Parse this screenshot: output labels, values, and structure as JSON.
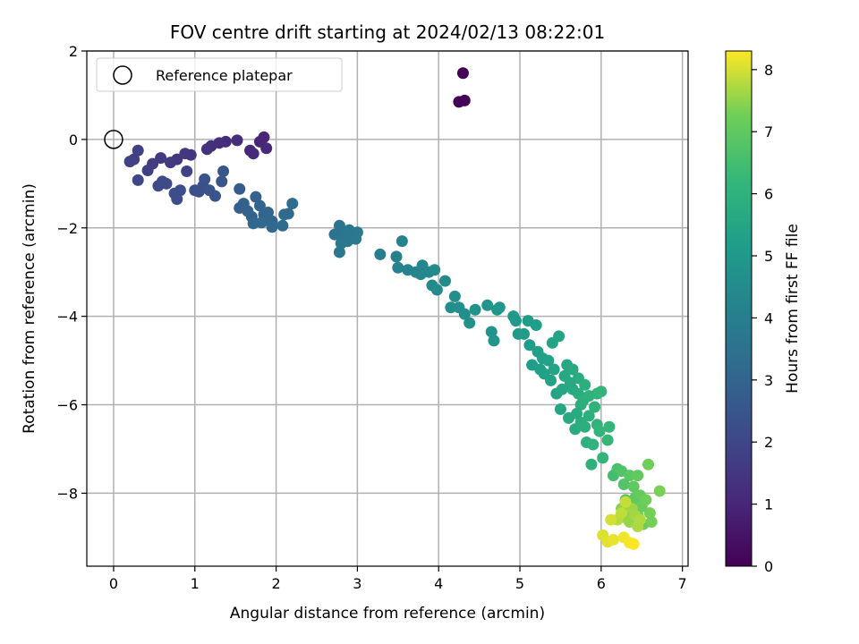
{
  "chart_data": {
    "type": "scatter",
    "title": "FOV centre drift starting at 2024/02/13 08:22:01",
    "xlabel": "Angular distance from reference (arcmin)",
    "ylabel": "Rotation from reference (arcmin)",
    "xlim": [
      -0.33,
      7.07
    ],
    "ylim": [
      -9.65,
      2.0
    ],
    "xticks": [
      0,
      1,
      2,
      3,
      4,
      5,
      6,
      7
    ],
    "yticks": [
      2,
      0,
      -2,
      -4,
      -6,
      -8
    ],
    "grid": true,
    "legend": {
      "position": "top-left",
      "entries": [
        "Reference platepar"
      ]
    },
    "reference_point": {
      "x": 0,
      "y": 0,
      "marker": "hollow-circle"
    },
    "colorbar": {
      "label": "Hours from first FF file",
      "range": [
        0,
        8.3
      ],
      "ticks": [
        0,
        1,
        2,
        3,
        4,
        5,
        6,
        7,
        8
      ],
      "colormap": "viridis"
    },
    "points": [
      {
        "x": 4.3,
        "y": 1.5,
        "c": 0.05
      },
      {
        "x": 4.25,
        "y": 0.85,
        "c": 0.1
      },
      {
        "x": 4.32,
        "y": 0.88,
        "c": 0.1
      },
      {
        "x": 1.85,
        "y": 0.05,
        "c": 1.0
      },
      {
        "x": 1.8,
        "y": -0.05,
        "c": 1.0
      },
      {
        "x": 1.88,
        "y": -0.2,
        "c": 1.05
      },
      {
        "x": 1.68,
        "y": -0.25,
        "c": 1.05
      },
      {
        "x": 1.72,
        "y": -0.32,
        "c": 1.1
      },
      {
        "x": 1.52,
        "y": -0.02,
        "c": 1.15
      },
      {
        "x": 1.38,
        "y": -0.05,
        "c": 1.2
      },
      {
        "x": 1.3,
        "y": -0.08,
        "c": 1.25
      },
      {
        "x": 1.2,
        "y": -0.15,
        "c": 1.3
      },
      {
        "x": 1.15,
        "y": -0.22,
        "c": 1.35
      },
      {
        "x": 0.95,
        "y": -0.35,
        "c": 1.45
      },
      {
        "x": 0.88,
        "y": -0.32,
        "c": 1.5
      },
      {
        "x": 0.78,
        "y": -0.45,
        "c": 1.55
      },
      {
        "x": 0.7,
        "y": -0.52,
        "c": 1.6
      },
      {
        "x": 0.58,
        "y": -0.42,
        "c": 1.65
      },
      {
        "x": 0.48,
        "y": -0.55,
        "c": 1.7
      },
      {
        "x": 0.42,
        "y": -0.7,
        "c": 1.75
      },
      {
        "x": 0.3,
        "y": -0.25,
        "c": 1.8
      },
      {
        "x": 0.25,
        "y": -0.45,
        "c": 1.8
      },
      {
        "x": 0.2,
        "y": -0.5,
        "c": 1.85
      },
      {
        "x": 0.9,
        "y": -0.72,
        "c": 1.9
      },
      {
        "x": 0.3,
        "y": -0.92,
        "c": 2.0
      },
      {
        "x": 0.55,
        "y": -1.05,
        "c": 2.1
      },
      {
        "x": 0.6,
        "y": -0.95,
        "c": 2.1
      },
      {
        "x": 0.65,
        "y": -1.0,
        "c": 2.15
      },
      {
        "x": 0.75,
        "y": -1.22,
        "c": 2.2
      },
      {
        "x": 0.78,
        "y": -1.35,
        "c": 2.2
      },
      {
        "x": 0.82,
        "y": -1.15,
        "c": 2.25
      },
      {
        "x": 1.0,
        "y": -1.15,
        "c": 2.3
      },
      {
        "x": 1.05,
        "y": -1.18,
        "c": 2.3
      },
      {
        "x": 1.1,
        "y": -1.05,
        "c": 2.35
      },
      {
        "x": 1.12,
        "y": -0.9,
        "c": 2.4
      },
      {
        "x": 1.18,
        "y": -1.15,
        "c": 2.4
      },
      {
        "x": 1.25,
        "y": -1.28,
        "c": 2.45
      },
      {
        "x": 1.35,
        "y": -0.72,
        "c": 2.5
      },
      {
        "x": 1.33,
        "y": -0.95,
        "c": 2.5
      },
      {
        "x": 1.55,
        "y": -1.12,
        "c": 2.7
      },
      {
        "x": 1.55,
        "y": -1.55,
        "c": 2.8
      },
      {
        "x": 1.6,
        "y": -1.45,
        "c": 2.85
      },
      {
        "x": 1.65,
        "y": -1.62,
        "c": 2.9
      },
      {
        "x": 1.75,
        "y": -1.3,
        "c": 2.9
      },
      {
        "x": 1.7,
        "y": -1.75,
        "c": 2.95
      },
      {
        "x": 1.8,
        "y": -1.5,
        "c": 3.0
      },
      {
        "x": 1.85,
        "y": -1.7,
        "c": 3.0
      },
      {
        "x": 1.9,
        "y": -1.65,
        "c": 3.05
      },
      {
        "x": 1.95,
        "y": -1.85,
        "c": 3.05
      },
      {
        "x": 1.72,
        "y": -1.9,
        "c": 3.1
      },
      {
        "x": 1.82,
        "y": -1.88,
        "c": 3.1
      },
      {
        "x": 1.95,
        "y": -1.98,
        "c": 3.15
      },
      {
        "x": 2.08,
        "y": -1.95,
        "c": 3.2
      },
      {
        "x": 2.1,
        "y": -1.7,
        "c": 3.25
      },
      {
        "x": 2.15,
        "y": -1.68,
        "c": 3.25
      },
      {
        "x": 2.2,
        "y": -1.45,
        "c": 3.3
      },
      {
        "x": 2.72,
        "y": -2.15,
        "c": 3.6
      },
      {
        "x": 2.78,
        "y": -1.95,
        "c": 3.6
      },
      {
        "x": 2.82,
        "y": -2.2,
        "c": 3.65
      },
      {
        "x": 2.85,
        "y": -2.1,
        "c": 3.65
      },
      {
        "x": 2.88,
        "y": -2.3,
        "c": 3.7
      },
      {
        "x": 2.8,
        "y": -2.35,
        "c": 3.7
      },
      {
        "x": 2.78,
        "y": -2.55,
        "c": 3.7
      },
      {
        "x": 2.9,
        "y": -2.05,
        "c": 3.75
      },
      {
        "x": 2.95,
        "y": -2.15,
        "c": 3.75
      },
      {
        "x": 2.98,
        "y": -2.25,
        "c": 3.8
      },
      {
        "x": 3.0,
        "y": -2.1,
        "c": 3.8
      },
      {
        "x": 3.28,
        "y": -2.6,
        "c": 4.0
      },
      {
        "x": 3.48,
        "y": -2.65,
        "c": 4.05
      },
      {
        "x": 3.5,
        "y": -2.9,
        "c": 4.1
      },
      {
        "x": 3.55,
        "y": -2.3,
        "c": 4.15
      },
      {
        "x": 3.62,
        "y": -2.95,
        "c": 4.2
      },
      {
        "x": 3.72,
        "y": -3.0,
        "c": 4.25
      },
      {
        "x": 3.8,
        "y": -2.85,
        "c": 4.3
      },
      {
        "x": 3.78,
        "y": -3.05,
        "c": 4.3
      },
      {
        "x": 3.88,
        "y": -3.0,
        "c": 4.35
      },
      {
        "x": 3.92,
        "y": -3.3,
        "c": 4.4
      },
      {
        "x": 3.95,
        "y": -2.95,
        "c": 4.4
      },
      {
        "x": 3.98,
        "y": -3.4,
        "c": 4.45
      },
      {
        "x": 4.08,
        "y": -3.2,
        "c": 4.5
      },
      {
        "x": 4.15,
        "y": -3.8,
        "c": 4.55
      },
      {
        "x": 4.2,
        "y": -3.55,
        "c": 4.6
      },
      {
        "x": 4.25,
        "y": -3.8,
        "c": 4.6
      },
      {
        "x": 4.32,
        "y": -3.95,
        "c": 4.65
      },
      {
        "x": 4.38,
        "y": -4.15,
        "c": 4.7
      },
      {
        "x": 4.45,
        "y": -3.85,
        "c": 4.75
      },
      {
        "x": 4.6,
        "y": -3.75,
        "c": 4.8
      },
      {
        "x": 4.65,
        "y": -4.35,
        "c": 4.85
      },
      {
        "x": 4.68,
        "y": -4.55,
        "c": 4.85
      },
      {
        "x": 4.72,
        "y": -3.85,
        "c": 4.9
      },
      {
        "x": 4.75,
        "y": -3.8,
        "c": 4.9
      },
      {
        "x": 4.92,
        "y": -4.0,
        "c": 5.0
      },
      {
        "x": 4.95,
        "y": -4.1,
        "c": 5.0
      },
      {
        "x": 4.98,
        "y": -4.4,
        "c": 5.05
      },
      {
        "x": 5.05,
        "y": -4.4,
        "c": 5.1
      },
      {
        "x": 5.1,
        "y": -4.1,
        "c": 5.1
      },
      {
        "x": 5.12,
        "y": -4.65,
        "c": 5.15
      },
      {
        "x": 5.15,
        "y": -5.1,
        "c": 5.2
      },
      {
        "x": 5.2,
        "y": -4.2,
        "c": 5.2
      },
      {
        "x": 5.22,
        "y": -4.8,
        "c": 5.25
      },
      {
        "x": 5.25,
        "y": -5.2,
        "c": 5.25
      },
      {
        "x": 5.28,
        "y": -4.95,
        "c": 5.3
      },
      {
        "x": 5.3,
        "y": -5.3,
        "c": 5.3
      },
      {
        "x": 5.35,
        "y": -5.0,
        "c": 5.35
      },
      {
        "x": 5.38,
        "y": -5.45,
        "c": 5.35
      },
      {
        "x": 5.4,
        "y": -4.6,
        "c": 5.4
      },
      {
        "x": 5.42,
        "y": -5.2,
        "c": 5.4
      },
      {
        "x": 5.45,
        "y": -5.75,
        "c": 5.45
      },
      {
        "x": 5.48,
        "y": -4.45,
        "c": 5.45
      },
      {
        "x": 5.5,
        "y": -6.1,
        "c": 5.5
      },
      {
        "x": 5.52,
        "y": -5.65,
        "c": 5.5
      },
      {
        "x": 5.55,
        "y": -5.35,
        "c": 5.55
      },
      {
        "x": 5.58,
        "y": -5.1,
        "c": 5.55
      },
      {
        "x": 5.6,
        "y": -6.3,
        "c": 5.6
      },
      {
        "x": 5.62,
        "y": -5.5,
        "c": 5.6
      },
      {
        "x": 5.65,
        "y": -5.2,
        "c": 5.65
      },
      {
        "x": 5.65,
        "y": -5.65,
        "c": 5.65
      },
      {
        "x": 5.68,
        "y": -6.55,
        "c": 5.7
      },
      {
        "x": 5.7,
        "y": -6.2,
        "c": 5.7
      },
      {
        "x": 5.72,
        "y": -5.75,
        "c": 5.75
      },
      {
        "x": 5.72,
        "y": -5.4,
        "c": 5.75
      },
      {
        "x": 5.75,
        "y": -6.4,
        "c": 5.8
      },
      {
        "x": 5.75,
        "y": -6.0,
        "c": 5.8
      },
      {
        "x": 5.78,
        "y": -5.9,
        "c": 5.85
      },
      {
        "x": 5.8,
        "y": -6.5,
        "c": 5.85
      },
      {
        "x": 5.8,
        "y": -5.55,
        "c": 5.85
      },
      {
        "x": 5.82,
        "y": -6.85,
        "c": 5.9
      },
      {
        "x": 5.85,
        "y": -6.25,
        "c": 5.9
      },
      {
        "x": 5.85,
        "y": -5.8,
        "c": 5.95
      },
      {
        "x": 5.88,
        "y": -7.35,
        "c": 5.95
      },
      {
        "x": 5.9,
        "y": -6.9,
        "c": 6.0
      },
      {
        "x": 5.92,
        "y": -6.05,
        "c": 6.0
      },
      {
        "x": 5.95,
        "y": -5.75,
        "c": 6.05
      },
      {
        "x": 5.95,
        "y": -6.45,
        "c": 6.05
      },
      {
        "x": 5.98,
        "y": -6.6,
        "c": 6.1
      },
      {
        "x": 6.0,
        "y": -5.7,
        "c": 6.1
      },
      {
        "x": 6.02,
        "y": -7.2,
        "c": 6.15
      },
      {
        "x": 6.08,
        "y": -6.8,
        "c": 6.2
      },
      {
        "x": 6.1,
        "y": -6.5,
        "c": 6.2
      },
      {
        "x": 6.15,
        "y": -7.6,
        "c": 6.5
      },
      {
        "x": 6.2,
        "y": -7.45,
        "c": 6.6
      },
      {
        "x": 6.25,
        "y": -7.5,
        "c": 6.7
      },
      {
        "x": 6.28,
        "y": -7.8,
        "c": 6.75
      },
      {
        "x": 6.3,
        "y": -8.15,
        "c": 6.8
      },
      {
        "x": 6.32,
        "y": -8.55,
        "c": 6.85
      },
      {
        "x": 6.35,
        "y": -7.6,
        "c": 6.9
      },
      {
        "x": 6.38,
        "y": -8.3,
        "c": 6.95
      },
      {
        "x": 6.4,
        "y": -7.85,
        "c": 7.0
      },
      {
        "x": 6.42,
        "y": -8.1,
        "c": 7.0
      },
      {
        "x": 6.45,
        "y": -7.6,
        "c": 7.05
      },
      {
        "x": 6.45,
        "y": -8.5,
        "c": 7.1
      },
      {
        "x": 6.48,
        "y": -8.05,
        "c": 7.1
      },
      {
        "x": 6.5,
        "y": -8.3,
        "c": 7.15
      },
      {
        "x": 6.52,
        "y": -8.7,
        "c": 7.2
      },
      {
        "x": 6.55,
        "y": -8.15,
        "c": 7.2
      },
      {
        "x": 6.58,
        "y": -7.35,
        "c": 7.25
      },
      {
        "x": 6.6,
        "y": -8.45,
        "c": 7.3
      },
      {
        "x": 6.62,
        "y": -8.65,
        "c": 7.3
      },
      {
        "x": 6.72,
        "y": -7.95,
        "c": 7.35
      },
      {
        "x": 6.25,
        "y": -8.35,
        "c": 7.45
      },
      {
        "x": 6.3,
        "y": -8.55,
        "c": 7.5
      },
      {
        "x": 6.35,
        "y": -8.65,
        "c": 7.55
      },
      {
        "x": 6.38,
        "y": -8.35,
        "c": 7.6
      },
      {
        "x": 6.42,
        "y": -8.5,
        "c": 7.65
      },
      {
        "x": 6.45,
        "y": -8.75,
        "c": 7.7
      },
      {
        "x": 6.48,
        "y": -8.6,
        "c": 7.75
      },
      {
        "x": 6.2,
        "y": -8.6,
        "c": 7.8
      },
      {
        "x": 6.25,
        "y": -8.45,
        "c": 7.85
      },
      {
        "x": 6.3,
        "y": -8.2,
        "c": 7.9
      },
      {
        "x": 6.12,
        "y": -8.6,
        "c": 8.0
      },
      {
        "x": 6.02,
        "y": -8.95,
        "c": 8.05
      },
      {
        "x": 6.08,
        "y": -9.1,
        "c": 8.1
      },
      {
        "x": 6.15,
        "y": -9.05,
        "c": 8.15
      },
      {
        "x": 6.28,
        "y": -9.0,
        "c": 8.2
      },
      {
        "x": 6.35,
        "y": -9.12,
        "c": 8.25
      },
      {
        "x": 6.4,
        "y": -9.15,
        "c": 8.3
      }
    ]
  }
}
